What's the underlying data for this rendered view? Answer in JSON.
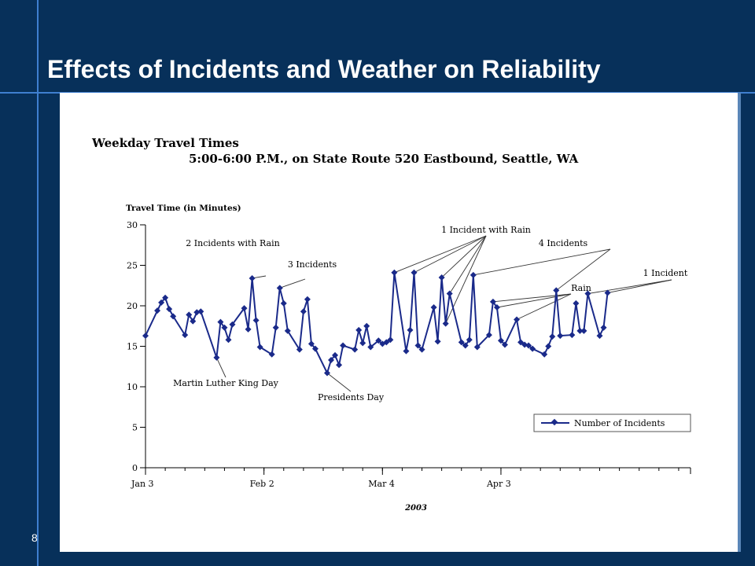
{
  "slide": {
    "title": "Effects of Incidents and Weather on Reliability",
    "number": "8",
    "background_color": "#07305a",
    "accent_color": "#3f7fd0"
  },
  "chart_data": {
    "type": "line",
    "title": "Weekday Travel Times",
    "subtitle": "5:00-6:00 P.M., on State Route 520 Eastbound, Seattle, WA",
    "ylabel": "Travel Time (in Minutes)",
    "xlabel": "2003",
    "ylim": [
      0,
      30
    ],
    "yticks": [
      0,
      5,
      10,
      15,
      20,
      25,
      30
    ],
    "xlim": [
      "2003-01-03",
      "2003-05-21"
    ],
    "xticks": [
      {
        "date": "2003-01-03",
        "label": "Jan 3"
      },
      {
        "date": "2003-02-02",
        "label": "Feb 2"
      },
      {
        "date": "2003-03-04",
        "label": "Mar 4"
      },
      {
        "date": "2003-04-03",
        "label": "Apr 3"
      }
    ],
    "grid": false,
    "legend": {
      "position": "bottom-right",
      "entries": [
        "Number of Incidents"
      ]
    },
    "color": "#1a2a8a",
    "series": [
      {
        "name": "Number of Incidents",
        "points": [
          {
            "x": "2003-01-03",
            "y": 16.3
          },
          {
            "x": "2003-01-06",
            "y": 19.4
          },
          {
            "x": "2003-01-07",
            "y": 20.4
          },
          {
            "x": "2003-01-08",
            "y": 21.0
          },
          {
            "x": "2003-01-09",
            "y": 19.6
          },
          {
            "x": "2003-01-10",
            "y": 18.7
          },
          {
            "x": "2003-01-13",
            "y": 16.4
          },
          {
            "x": "2003-01-14",
            "y": 18.9
          },
          {
            "x": "2003-01-15",
            "y": 18.1
          },
          {
            "x": "2003-01-16",
            "y": 19.2
          },
          {
            "x": "2003-01-17",
            "y": 19.3
          },
          {
            "x": "2003-01-21",
            "y": 13.6
          },
          {
            "x": "2003-01-22",
            "y": 18.0
          },
          {
            "x": "2003-01-23",
            "y": 17.3
          },
          {
            "x": "2003-01-24",
            "y": 15.8
          },
          {
            "x": "2003-01-25",
            "y": 17.7
          },
          {
            "x": "2003-01-28",
            "y": 19.7
          },
          {
            "x": "2003-01-29",
            "y": 17.1
          },
          {
            "x": "2003-01-30",
            "y": 23.4
          },
          {
            "x": "2003-01-31",
            "y": 18.2
          },
          {
            "x": "2003-02-01",
            "y": 14.9
          },
          {
            "x": "2003-02-04",
            "y": 14.0
          },
          {
            "x": "2003-02-05",
            "y": 17.3
          },
          {
            "x": "2003-02-06",
            "y": 22.2
          },
          {
            "x": "2003-02-07",
            "y": 20.3
          },
          {
            "x": "2003-02-08",
            "y": 16.9
          },
          {
            "x": "2003-02-11",
            "y": 14.6
          },
          {
            "x": "2003-02-12",
            "y": 19.3
          },
          {
            "x": "2003-02-13",
            "y": 20.8
          },
          {
            "x": "2003-02-14",
            "y": 15.3
          },
          {
            "x": "2003-02-15",
            "y": 14.7
          },
          {
            "x": "2003-02-18",
            "y": 11.7
          },
          {
            "x": "2003-02-19",
            "y": 13.3
          },
          {
            "x": "2003-02-20",
            "y": 13.9
          },
          {
            "x": "2003-02-21",
            "y": 12.7
          },
          {
            "x": "2003-02-22",
            "y": 15.1
          },
          {
            "x": "2003-02-25",
            "y": 14.6
          },
          {
            "x": "2003-02-26",
            "y": 17.0
          },
          {
            "x": "2003-02-27",
            "y": 15.4
          },
          {
            "x": "2003-02-28",
            "y": 17.5
          },
          {
            "x": "2003-03-01",
            "y": 14.9
          },
          {
            "x": "2003-03-03",
            "y": 15.7
          },
          {
            "x": "2003-03-04",
            "y": 15.3
          },
          {
            "x": "2003-03-05",
            "y": 15.5
          },
          {
            "x": "2003-03-06",
            "y": 15.8
          },
          {
            "x": "2003-03-07",
            "y": 24.1
          },
          {
            "x": "2003-03-10",
            "y": 14.4
          },
          {
            "x": "2003-03-11",
            "y": 17.0
          },
          {
            "x": "2003-03-12",
            "y": 24.1
          },
          {
            "x": "2003-03-13",
            "y": 15.1
          },
          {
            "x": "2003-03-14",
            "y": 14.6
          },
          {
            "x": "2003-03-17",
            "y": 19.8
          },
          {
            "x": "2003-03-18",
            "y": 15.6
          },
          {
            "x": "2003-03-19",
            "y": 23.5
          },
          {
            "x": "2003-03-20",
            "y": 17.8
          },
          {
            "x": "2003-03-21",
            "y": 21.5
          },
          {
            "x": "2003-03-24",
            "y": 15.5
          },
          {
            "x": "2003-03-25",
            "y": 15.1
          },
          {
            "x": "2003-03-26",
            "y": 15.8
          },
          {
            "x": "2003-03-27",
            "y": 23.8
          },
          {
            "x": "2003-03-28",
            "y": 14.9
          },
          {
            "x": "2003-03-31",
            "y": 16.4
          },
          {
            "x": "2003-04-01",
            "y": 20.5
          },
          {
            "x": "2003-04-02",
            "y": 19.8
          },
          {
            "x": "2003-04-03",
            "y": 15.7
          },
          {
            "x": "2003-04-04",
            "y": 15.2
          },
          {
            "x": "2003-04-07",
            "y": 18.3
          },
          {
            "x": "2003-04-08",
            "y": 15.5
          },
          {
            "x": "2003-04-09",
            "y": 15.2
          },
          {
            "x": "2003-04-10",
            "y": 15.1
          },
          {
            "x": "2003-04-11",
            "y": 14.7
          },
          {
            "x": "2003-04-14",
            "y": 14.0
          },
          {
            "x": "2003-04-15",
            "y": 15.0
          },
          {
            "x": "2003-04-16",
            "y": 16.2
          },
          {
            "x": "2003-04-17",
            "y": 21.9
          },
          {
            "x": "2003-04-18",
            "y": 16.3
          },
          {
            "x": "2003-04-21",
            "y": 16.4
          },
          {
            "x": "2003-04-22",
            "y": 20.3
          },
          {
            "x": "2003-04-23",
            "y": 16.9
          },
          {
            "x": "2003-04-24",
            "y": 16.9
          },
          {
            "x": "2003-04-25",
            "y": 21.5
          },
          {
            "x": "2003-04-28",
            "y": 16.3
          },
          {
            "x": "2003-04-29",
            "y": 17.3
          },
          {
            "x": "2003-04-30",
            "y": 21.6
          }
        ]
      }
    ],
    "annotations": [
      {
        "text": "2 Incidents with Rain",
        "targets": [
          {
            "x": "2003-01-30",
            "y": 23.4
          }
        ]
      },
      {
        "text": "3 Incidents",
        "targets": [
          {
            "x": "2003-02-06",
            "y": 22.2
          }
        ]
      },
      {
        "text": "Martin Luther King Day",
        "targets": [
          {
            "x": "2003-01-21",
            "y": 13.6
          }
        ]
      },
      {
        "text": "Presidents Day",
        "targets": [
          {
            "x": "2003-02-18",
            "y": 11.7
          }
        ]
      },
      {
        "text": "1 Incident with Rain",
        "targets": [
          {
            "x": "2003-03-07",
            "y": 24.1
          },
          {
            "x": "2003-03-12",
            "y": 24.1
          },
          {
            "x": "2003-03-19",
            "y": 23.5
          },
          {
            "x": "2003-03-20",
            "y": 17.8
          },
          {
            "x": "2003-03-21",
            "y": 21.5
          }
        ]
      },
      {
        "text": "4 Incidents",
        "targets": [
          {
            "x": "2003-03-27",
            "y": 23.8
          },
          {
            "x": "2003-04-17",
            "y": 21.9
          }
        ]
      },
      {
        "text": "Rain",
        "targets": [
          {
            "x": "2003-04-01",
            "y": 20.5
          },
          {
            "x": "2003-04-02",
            "y": 19.8
          },
          {
            "x": "2003-04-07",
            "y": 18.3
          }
        ]
      },
      {
        "text": "1 Incident",
        "targets": [
          {
            "x": "2003-04-25",
            "y": 21.5
          },
          {
            "x": "2003-04-30",
            "y": 21.6
          }
        ]
      }
    ]
  }
}
